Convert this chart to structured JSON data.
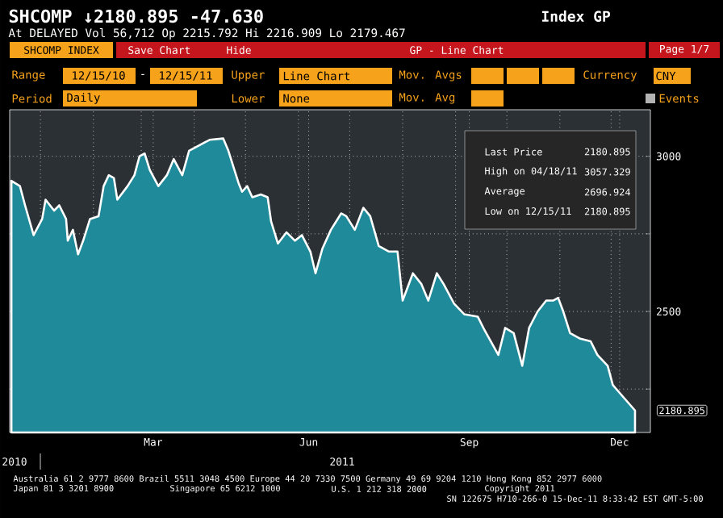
{
  "chart_data": {
    "type": "area",
    "title": "SHCOMP ↓2180.895 -47.630",
    "subtitle": "At DELAYED Vol 56,712 Op 2215.792 Hi 2216.909 Lo 2179.467",
    "annotations": [
      "Index GP",
      "SHCOMP INDEX",
      "Save Chart",
      "Hide",
      "GP - Line Chart",
      "Page 1/7",
      "Range",
      "12/15/10",
      "-",
      "12/15/11",
      "Upper",
      "Line Chart",
      "Mov. Avgs",
      "Currency",
      "CNY",
      "Period",
      "Daily",
      "Lower",
      "None",
      "Mov. Avg",
      "Events",
      "Last Price",
      "2180.895",
      "High on 04/18/11",
      "3057.329",
      "Average",
      "2696.924",
      "Low on 12/15/11",
      "2180.895",
      "2010",
      "2011",
      "Australia 61 2 9777 8600 Brazil 5511 3048 4500 Europe 44 20 7330 7500 Germany 49 69 9204 1210 Hong Kong 852 2977 6000",
      "Japan 81 3 3201 8900",
      "Singapore 65 6212 1000",
      "U.S. 1 212 318 2000",
      "Copyright 2011",
      "SN 122675 H710-266-0 15-Dec-11 8:33:42 EST GMT-5:00",
      {
        "text": "2180.895",
        "x": "2011-12-15",
        "y": 2180.895
      }
    ],
    "x": [
      "2010-12-15",
      "2010-12-20",
      "2010-12-23",
      "2010-12-28",
      "2011-01-02",
      "2011-01-04",
      "2011-01-09",
      "2011-01-12",
      "2011-01-16",
      "2011-01-17",
      "2011-01-20",
      "2011-01-23",
      "2011-01-26",
      "2011-01-30",
      "2011-02-04",
      "2011-02-07",
      "2011-02-10",
      "2011-02-13",
      "2011-02-15",
      "2011-02-21",
      "2011-02-25",
      "2011-02-28",
      "2011-03-03",
      "2011-03-06",
      "2011-03-11",
      "2011-03-16",
      "2011-03-20",
      "2011-03-25",
      "2011-03-29",
      "2011-04-10",
      "2011-04-18",
      "2011-04-21",
      "2011-04-24",
      "2011-04-27",
      "2011-04-29",
      "2011-05-02",
      "2011-05-05",
      "2011-05-10",
      "2011-05-14",
      "2011-05-16",
      "2011-05-20",
      "2011-05-25",
      "2011-05-30",
      "2011-06-03",
      "2011-06-08",
      "2011-06-11",
      "2011-06-15",
      "2011-06-20",
      "2011-06-26",
      "2011-06-29",
      "2011-07-04",
      "2011-07-09",
      "2011-07-13",
      "2011-07-18",
      "2011-07-24",
      "2011-07-29",
      "2011-08-01",
      "2011-08-07",
      "2011-08-12",
      "2011-08-16",
      "2011-08-21",
      "2011-08-25",
      "2011-08-31",
      "2011-09-06",
      "2011-09-14",
      "2011-09-18",
      "2011-09-26",
      "2011-09-30",
      "2011-10-05",
      "2011-10-10",
      "2011-10-14",
      "2011-10-19",
      "2011-10-24",
      "2011-10-28",
      "2011-10-31",
      "2011-11-03",
      "2011-11-07",
      "2011-11-13",
      "2011-11-19",
      "2011-11-23",
      "2011-11-29",
      "2011-12-02",
      "2011-12-15"
    ],
    "series": [
      {
        "color": "#1f8a99",
        "values": [
          2921,
          2904,
          2842,
          2746,
          2798,
          2860,
          2825,
          2842,
          2798,
          2728,
          2763,
          2684,
          2728,
          2798,
          2807,
          2904,
          2939,
          2930,
          2860,
          2904,
          2939,
          3000,
          3009,
          2956,
          2904,
          2939,
          2991,
          2939,
          3018,
          3053,
          3057.329,
          3018,
          2965,
          2913,
          2886,
          2904,
          2868,
          2877,
          2868,
          2790,
          2719,
          2755,
          2728,
          2746,
          2693,
          2623,
          2702,
          2763,
          2816,
          2807,
          2763,
          2834,
          2807,
          2711,
          2693,
          2693,
          2535,
          2623,
          2588,
          2535,
          2623,
          2588,
          2526,
          2491,
          2483,
          2439,
          2360,
          2447,
          2430,
          2325,
          2447,
          2500,
          2535,
          2535,
          2544,
          2500,
          2430,
          2412,
          2404,
          2360,
          2325,
          2263,
          2180.895
        ]
      }
    ],
    "xlim": [
      "2010-12-14",
      "2011-12-24"
    ],
    "ylim": [
      2110,
      3150
    ],
    "xticks": [
      {
        "value": "2011-01-01",
        "label": null
      },
      {
        "value": "2011-02-01",
        "label": null
      },
      {
        "value": "2011-03-01",
        "label": null
      },
      {
        "value": "2011-03-08",
        "label": "Mar"
      },
      {
        "value": "2011-04-01",
        "label": null
      },
      {
        "value": "2011-05-01",
        "label": null
      },
      {
        "value": "2011-06-01",
        "label": null
      },
      {
        "value": "2011-06-07",
        "label": "Jun"
      },
      {
        "value": "2011-07-01",
        "label": null
      },
      {
        "value": "2011-08-01",
        "label": null
      },
      {
        "value": "2011-09-01",
        "label": null
      },
      {
        "value": "2011-09-09",
        "label": "Sep"
      },
      {
        "value": "2011-10-01",
        "label": null
      },
      {
        "value": "2011-11-01",
        "label": null
      },
      {
        "value": "2011-12-01",
        "label": null
      },
      {
        "value": "2011-12-06",
        "label": "Dec"
      }
    ],
    "yticks": [
      {
        "value": 2250,
        "label": null
      },
      2500,
      {
        "value": 2750,
        "label": null
      },
      3000
    ],
    "grid": true,
    "marker": "none",
    "line_style": "solid"
  }
}
